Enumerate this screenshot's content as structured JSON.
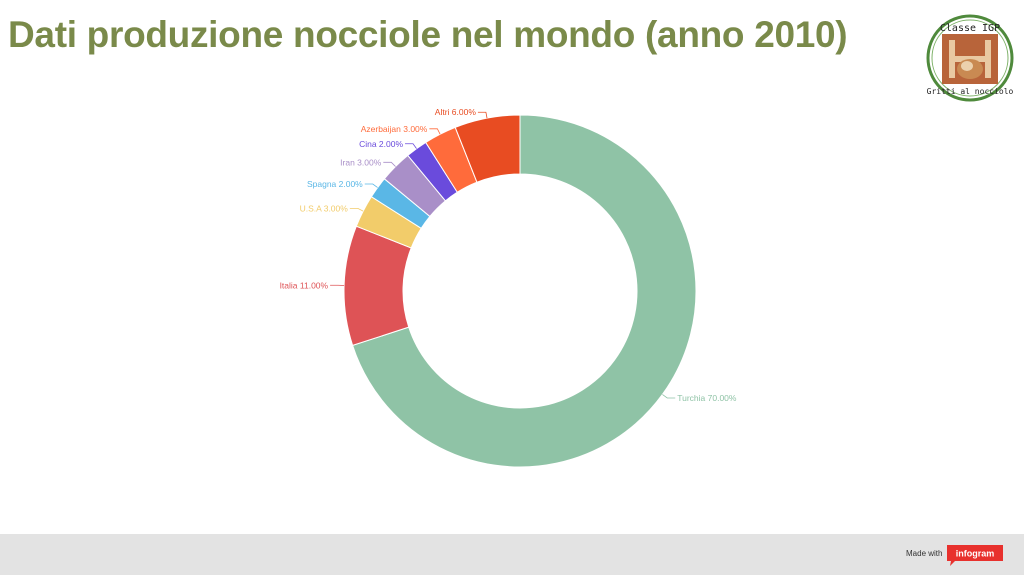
{
  "title": "Dati produzione nocciole nel mondo (anno 2010)",
  "logo": {
    "top_text": "Classe IGP",
    "bottom_text": "Gritti al nocciolo"
  },
  "footer": {
    "made_with": "Made with",
    "brand": "infogram",
    "brand_color": "#e8312d"
  },
  "chart_data": {
    "type": "pie",
    "style": "donut",
    "title": "",
    "categories": [
      "Turchia",
      "Italia",
      "U.S.A",
      "Spagna",
      "Iran",
      "Cina",
      "Azerbaijan",
      "Altri"
    ],
    "values": [
      70.0,
      11.0,
      3.0,
      2.0,
      3.0,
      2.0,
      3.0,
      6.0
    ],
    "labels": [
      "Turchia 70.00%",
      "Italia 11.00%",
      "U.S.A 3.00%",
      "Spagna 2.00%",
      "Iran 3.00%",
      "Cina 2.00%",
      "Azerbaijan 3.00%",
      "Altri 6.00%"
    ],
    "colors": [
      "#8fc3a6",
      "#de5356",
      "#f2cc6a",
      "#5ab7e6",
      "#a98fc8",
      "#6a4bdc",
      "#ff6b3b",
      "#e84c22"
    ]
  }
}
